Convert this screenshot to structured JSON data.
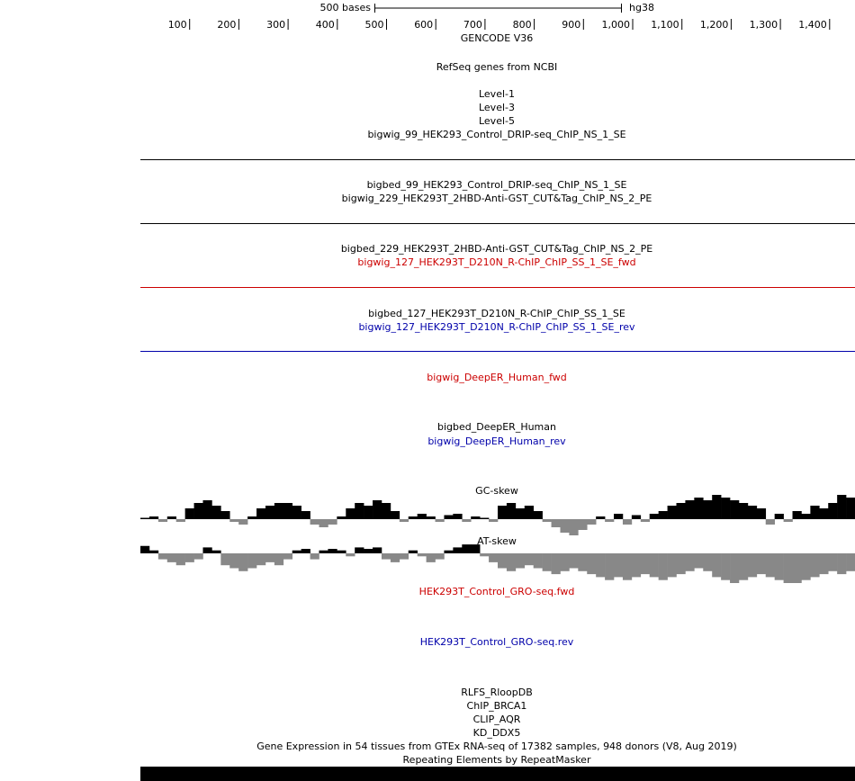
{
  "ruler": {
    "scale_label": "500 bases",
    "assembly": "hg38",
    "ticks": [
      100,
      200,
      300,
      400,
      500,
      600,
      700,
      800,
      900,
      {
        "value": 1000,
        "label": "1,000"
      },
      {
        "value": 1100,
        "label": "1,100"
      },
      {
        "value": 1200,
        "label": "1,200"
      },
      {
        "value": 1300,
        "label": "1,300"
      },
      {
        "value": 1400,
        "label": "1,400"
      }
    ]
  },
  "tracks": [
    {
      "label": "GENCODE V36",
      "color": "#000000"
    },
    {
      "label": "RefSeq genes from NCBI",
      "color": "#000000"
    },
    {
      "label": "Level-1",
      "color": "#000000"
    },
    {
      "label": "Level-3",
      "color": "#000000"
    },
    {
      "label": "Level-5",
      "color": "#000000"
    },
    {
      "label": "bigwig_99_HEK293_Control_DRIP-seq_ChIP_NS_1_SE",
      "color": "#000000"
    },
    {
      "label": "bigbed_99_HEK293_Control_DRIP-seq_ChIP_NS_1_SE",
      "color": "#000000"
    },
    {
      "label": "bigwig_229_HEK293T_2HBD-Anti-GST_CUT&Tag_ChIP_NS_2_PE",
      "color": "#000000"
    },
    {
      "label": "bigbed_229_HEK293T_2HBD-Anti-GST_CUT&Tag_ChIP_NS_2_PE",
      "color": "#000000"
    },
    {
      "label": "bigwig_127_HEK293T_D210N_R-ChIP_ChIP_SS_1_SE_fwd",
      "color": "#cc0000"
    },
    {
      "label": "bigbed_127_HEK293T_D210N_R-ChIP_ChIP_SS_1_SE",
      "color": "#000000"
    },
    {
      "label": "bigwig_127_HEK293T_D210N_R-ChIP_ChIP_SS_1_SE_rev",
      "color": "#0000aa"
    },
    {
      "label": "bigwig_DeepER_Human_fwd",
      "color": "#cc0000"
    },
    {
      "label": "bigbed_DeepER_Human",
      "color": "#000000"
    },
    {
      "label": "bigwig_DeepER_Human_rev",
      "color": "#0000aa"
    },
    {
      "label": "GC-skew",
      "color": "#000000"
    },
    {
      "label": "AT-skew",
      "color": "#000000"
    },
    {
      "label": "HEK293T_Control_GRO-seq.fwd",
      "color": "#cc0000"
    },
    {
      "label": "HEK293T_Control_GRO-seq.rev",
      "color": "#0000aa"
    },
    {
      "label": "RLFS_RloopDB",
      "color": "#000000"
    },
    {
      "label": "ChIP_BRCA1",
      "color": "#000000"
    },
    {
      "label": "CLIP_AQR",
      "color": "#000000"
    },
    {
      "label": "KD_DDX5",
      "color": "#000000"
    },
    {
      "label": "Gene Expression in 54 tissues from GTEx RNA-seq of 17382 samples, 948 donors (V8, Aug 2019)",
      "color": "#000000"
    },
    {
      "label": "Repeating Elements by RepeatMasker",
      "color": "#000000"
    }
  ],
  "gc_skew": [
    0.05,
    0.1,
    -0.1,
    0.1,
    -0.1,
    0.4,
    0.6,
    0.7,
    0.5,
    0.3,
    -0.1,
    -0.2,
    0.1,
    0.4,
    0.5,
    0.6,
    0.6,
    0.5,
    0.3,
    -0.2,
    -0.3,
    -0.2,
    0.1,
    0.4,
    0.6,
    0.5,
    0.7,
    0.6,
    0.3,
    -0.1,
    0.1,
    0.2,
    0.1,
    -0.1,
    0.15,
    0.2,
    -0.1,
    0.1,
    0.05,
    -0.1,
    0.5,
    0.6,
    0.4,
    0.5,
    0.3,
    -0.1,
    -0.3,
    -0.5,
    -0.6,
    -0.4,
    -0.2,
    0.1,
    -0.1,
    0.2,
    -0.2,
    0.15,
    -0.1,
    0.2,
    0.3,
    0.5,
    0.6,
    0.7,
    0.8,
    0.7,
    0.9,
    0.8,
    0.7,
    0.6,
    0.5,
    0.4,
    -0.2,
    0.2,
    -0.1,
    0.3,
    0.2,
    0.5,
    0.4,
    0.6,
    0.9,
    0.8
  ],
  "at_skew": [
    0.25,
    0.1,
    -0.2,
    -0.3,
    -0.4,
    -0.3,
    -0.2,
    0.2,
    0.1,
    -0.4,
    -0.5,
    -0.6,
    -0.5,
    -0.4,
    -0.3,
    -0.4,
    -0.2,
    0.1,
    0.15,
    -0.2,
    0.1,
    0.15,
    0.1,
    -0.1,
    0.2,
    0.15,
    0.2,
    -0.2,
    -0.3,
    -0.2,
    0.1,
    -0.1,
    -0.3,
    -0.2,
    0.1,
    0.2,
    0.3,
    0.3,
    -0.1,
    -0.3,
    -0.5,
    -0.6,
    -0.5,
    -0.4,
    -0.5,
    -0.6,
    -0.7,
    -0.6,
    -0.5,
    -0.6,
    -0.7,
    -0.8,
    -0.9,
    -0.8,
    -0.9,
    -0.8,
    -0.7,
    -0.8,
    -0.9,
    -0.8,
    -0.7,
    -0.6,
    -0.5,
    -0.6,
    -0.8,
    -0.9,
    -1.0,
    -0.9,
    -0.8,
    -0.7,
    -0.8,
    -0.9,
    -1.0,
    -1.0,
    -0.9,
    -0.8,
    -0.7,
    -0.6,
    -0.7,
    -0.6
  ]
}
